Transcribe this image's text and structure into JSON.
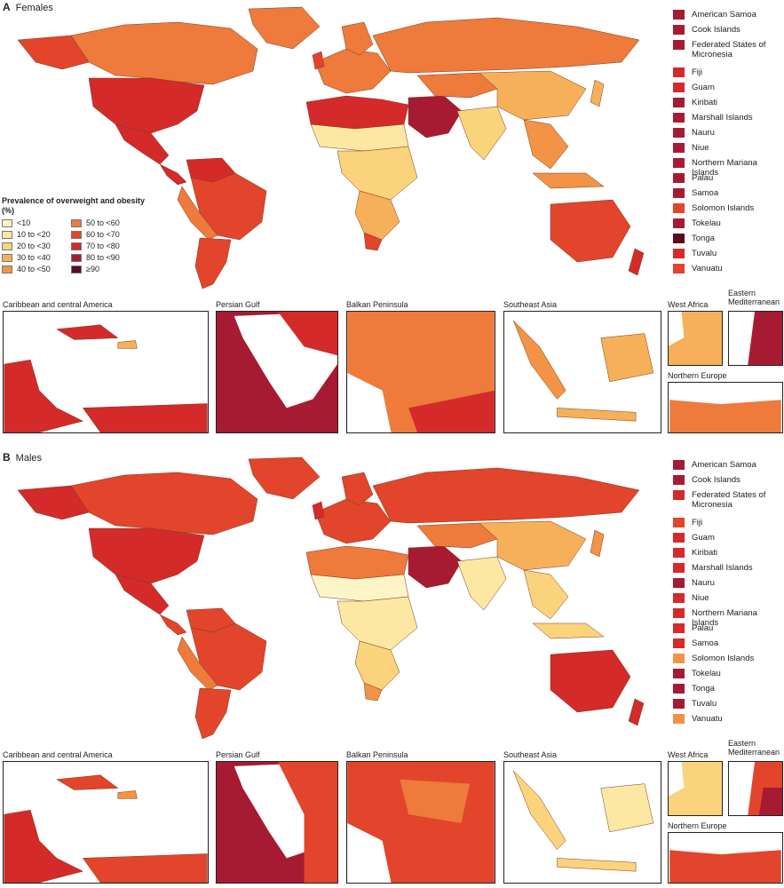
{
  "panels": [
    {
      "letter": "A",
      "title": "Females",
      "legend": {
        "title": "Prevalence of overweight and obesity (%)",
        "items": [
          {
            "label": "<10",
            "color": "#fdf5c8"
          },
          {
            "label": "50 to <60",
            "color": "#ee7a3c"
          },
          {
            "label": "10 to <20",
            "color": "#fde8a3"
          },
          {
            "label": "60 to <70",
            "color": "#e2452b"
          },
          {
            "label": "20 to <30",
            "color": "#fbd37c"
          },
          {
            "label": "70 to <80",
            "color": "#d42a2a"
          },
          {
            "label": "30 to <40",
            "color": "#f7b05a"
          },
          {
            "label": "80 to <90",
            "color": "#a71b32"
          },
          {
            "label": "40 to <50",
            "color": "#f29346"
          },
          {
            "label": "≥90",
            "color": "#5c0a1e"
          }
        ]
      },
      "islands": [
        {
          "name": "American Samoa",
          "color": "#a71b32"
        },
        {
          "name": "Cook Islands",
          "color": "#a71b32"
        },
        {
          "name": "Federated States of Micronesia",
          "color": "#a71b32"
        },
        {
          "name": "Fiji",
          "color": "#d42a2a"
        },
        {
          "name": "Guam",
          "color": "#d42a2a"
        },
        {
          "name": "Kiribati",
          "color": "#a71b32"
        },
        {
          "name": "Marshall Islands",
          "color": "#a71b32"
        },
        {
          "name": "Nauru",
          "color": "#a71b32"
        },
        {
          "name": "Niue",
          "color": "#a71b32"
        },
        {
          "name": "Northern Mariana Islands",
          "color": "#a71b32"
        },
        {
          "name": "Palau",
          "color": "#a71b32"
        },
        {
          "name": "Samoa",
          "color": "#a71b32"
        },
        {
          "name": "Solomon Islands",
          "color": "#e2452b"
        },
        {
          "name": "Tokelau",
          "color": "#a71b32"
        },
        {
          "name": "Tonga",
          "color": "#5c0a1e"
        },
        {
          "name": "Tuvalu",
          "color": "#d42a2a"
        },
        {
          "name": "Vanuatu",
          "color": "#e2452b"
        }
      ],
      "insets": [
        {
          "label": "Caribbean and central America"
        },
        {
          "label": "Persian Gulf"
        },
        {
          "label": "Balkan Peninsula"
        },
        {
          "label": "Southeast Asia"
        },
        {
          "label": "West Africa"
        },
        {
          "label": "Eastern Mediterranean"
        },
        {
          "label": "Northern Europe"
        }
      ]
    },
    {
      "letter": "B",
      "title": "Males",
      "islands": [
        {
          "name": "American Samoa",
          "color": "#a71b32"
        },
        {
          "name": "Cook Islands",
          "color": "#a71b32"
        },
        {
          "name": "Federated States of Micronesia",
          "color": "#d42a2a"
        },
        {
          "name": "Fiji",
          "color": "#e2452b"
        },
        {
          "name": "Guam",
          "color": "#d42a2a"
        },
        {
          "name": "Kiribati",
          "color": "#d42a2a"
        },
        {
          "name": "Marshall Islands",
          "color": "#d42a2a"
        },
        {
          "name": "Nauru",
          "color": "#a71b32"
        },
        {
          "name": "Niue",
          "color": "#d42a2a"
        },
        {
          "name": "Northern Mariana Islands",
          "color": "#d42a2a"
        },
        {
          "name": "Palau",
          "color": "#d42a2a"
        },
        {
          "name": "Samoa",
          "color": "#d42a2a"
        },
        {
          "name": "Solomon Islands",
          "color": "#f29346"
        },
        {
          "name": "Tokelau",
          "color": "#a71b32"
        },
        {
          "name": "Tonga",
          "color": "#a71b32"
        },
        {
          "name": "Tuvalu",
          "color": "#a71b32"
        },
        {
          "name": "Vanuatu",
          "color": "#f29346"
        }
      ],
      "insets": [
        {
          "label": "Caribbean and central America"
        },
        {
          "label": "Persian Gulf"
        },
        {
          "label": "Balkan Peninsula"
        },
        {
          "label": "Southeast Asia"
        },
        {
          "label": "West Africa"
        },
        {
          "label": "Eastern Mediterranean"
        },
        {
          "label": "Northern Europe"
        }
      ]
    }
  ]
}
